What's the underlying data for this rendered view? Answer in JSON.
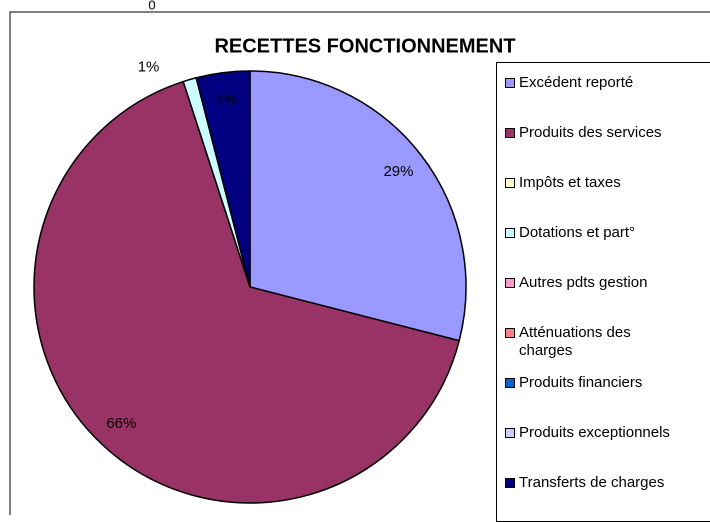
{
  "chart_data": {
    "type": "pie",
    "title": "RECETTES FONCTIONNEMENT",
    "annotation": "0",
    "categories": [
      "Excédent reporté",
      "Produits des services",
      "Impôts et taxes",
      "Dotations et part°",
      "Autres pdts gestion",
      "Atténuations des charges",
      "Produits financiers",
      "Produits exceptionnels",
      "Transferts de charges"
    ],
    "values": [
      29,
      66,
      0,
      1,
      0,
      0,
      0,
      0,
      4
    ],
    "value_labels": [
      "29%",
      "66%",
      null,
      "1%",
      null,
      null,
      null,
      null,
      "4%"
    ],
    "colors": [
      "#9999ff",
      "#993366",
      "#ffffcc",
      "#ccffff",
      "#ff99cc",
      "#ff8080",
      "#0066cc",
      "#ccccff",
      "#000080"
    ],
    "legend": "right"
  }
}
